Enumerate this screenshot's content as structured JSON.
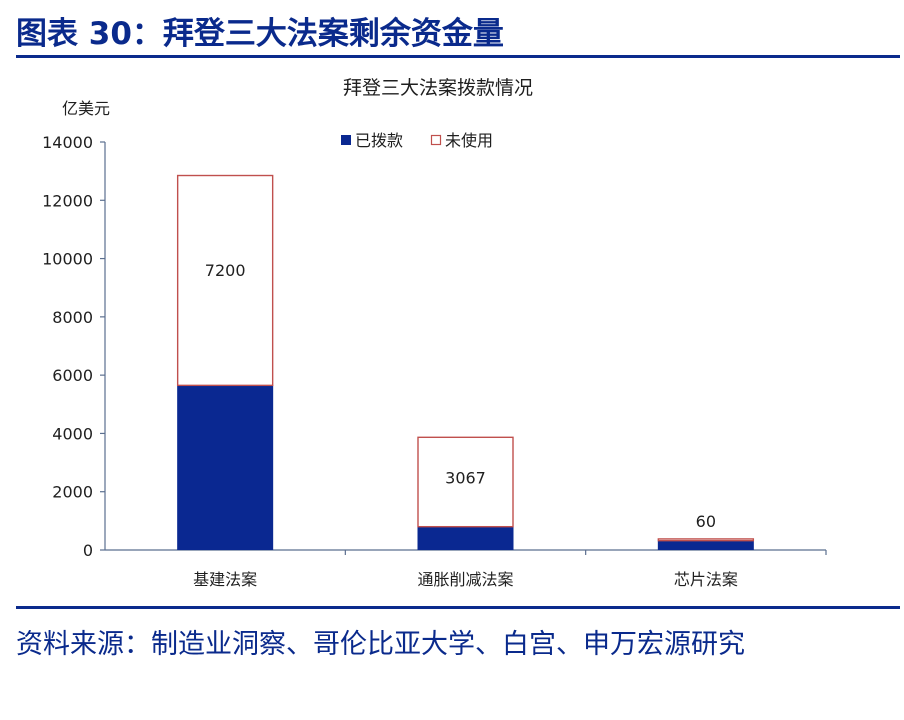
{
  "figure_title": "图表 30：拜登三大法案剩余资金量",
  "source_text": "资料来源：制造业洞察、哥伦比亚大学、白宫、申万宏源研究",
  "colors": {
    "brand_blue": "#0a2a8c",
    "bar_fill": "#0a2891",
    "unused_border": "#c0504d",
    "axis": "#5b6f8f",
    "text": "#1f1f1f"
  },
  "chart_data": {
    "type": "bar",
    "stacked": true,
    "title": "拜登三大法案拨款情况",
    "ylabel": "亿美元",
    "xlabel": "",
    "ylim": [
      0,
      14000
    ],
    "yticks": [
      "0",
      "2000",
      "4000",
      "6000",
      "8000",
      "10000",
      "12000",
      "14000"
    ],
    "categories": [
      "基建法案",
      "通胀削减法案",
      "芯片法案"
    ],
    "series": [
      {
        "name": "已拨款",
        "values": [
          5650,
          800,
          320
        ]
      },
      {
        "name": "未使用",
        "values": [
          7200,
          3067,
          60
        ],
        "labels": [
          "7200",
          "3067",
          "60"
        ]
      }
    ],
    "legend": "top"
  }
}
